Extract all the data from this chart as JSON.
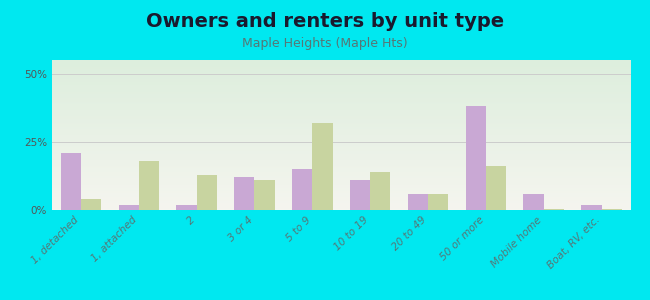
{
  "title": "Owners and renters by unit type",
  "subtitle": "Maple Heights (Maple Hts)",
  "categories": [
    "1, detached",
    "1, attached",
    "2",
    "3 or 4",
    "5 to 9",
    "10 to 19",
    "20 to 49",
    "50 or more",
    "Mobile home",
    "Boat, RV, etc."
  ],
  "owner_values": [
    21,
    2,
    2,
    12,
    15,
    11,
    6,
    38,
    6,
    2
  ],
  "renter_values": [
    4,
    18,
    13,
    11,
    32,
    14,
    6,
    16,
    0.5,
    0.5
  ],
  "owner_color": "#c9a8d4",
  "renter_color": "#c8d4a0",
  "background_color": "#00e8f0",
  "plot_bg_top": "#ddeedd",
  "plot_bg_bottom": "#f5f5ef",
  "grid_color": "#cccccc",
  "yticks": [
    0,
    25,
    50
  ],
  "ylim": [
    0,
    55
  ],
  "bar_width": 0.35,
  "title_fontsize": 14,
  "subtitle_fontsize": 9,
  "legend_fontsize": 9,
  "tick_fontsize": 7.5
}
